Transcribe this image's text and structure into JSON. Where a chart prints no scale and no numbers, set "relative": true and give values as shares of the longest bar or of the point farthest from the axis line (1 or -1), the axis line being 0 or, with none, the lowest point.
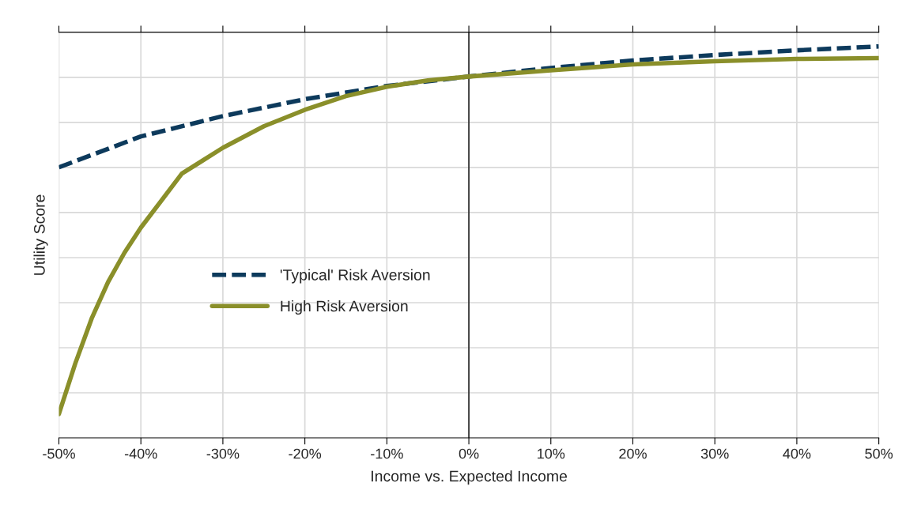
{
  "chart_data": {
    "type": "line",
    "relative": true,
    "xlabel": "Income vs. Expected Income",
    "ylabel": "Utility Score",
    "xlim": [
      -50,
      50
    ],
    "xticks": [
      {
        "value": -50,
        "label": "-50%"
      },
      {
        "value": -40,
        "label": "-40%"
      },
      {
        "value": -30,
        "label": "-30%"
      },
      {
        "value": -20,
        "label": "-20%"
      },
      {
        "value": -10,
        "label": "-10%"
      },
      {
        "value": 0,
        "label": "0%"
      },
      {
        "value": 10,
        "label": "10%"
      },
      {
        "value": 20,
        "label": "20%"
      },
      {
        "value": 30,
        "label": "30%"
      },
      {
        "value": 40,
        "label": "40%"
      },
      {
        "value": 50,
        "label": "50%"
      }
    ],
    "grid": true,
    "legend": "center left",
    "ref_lines": [
      {
        "axis": "x",
        "value": 0,
        "color": "#000000"
      }
    ],
    "series": [
      {
        "name": "'Typical' Risk Aversion",
        "color": "#0d3a5c",
        "line_style": "dashed",
        "x": [
          -50,
          -40,
          -30,
          -20,
          -10,
          0,
          10,
          20,
          30,
          40,
          50
        ],
        "values": [
          0.691,
          0.77,
          0.822,
          0.865,
          0.899,
          0.923,
          0.945,
          0.964,
          0.978,
          0.99,
          1.0
        ]
      },
      {
        "name": "High Risk Aversion",
        "color": "#8a8f2a",
        "line_style": "solid",
        "x": [
          -50,
          -48,
          -46,
          -44,
          -42,
          -40,
          -35,
          -30,
          -25,
          -20,
          -15,
          -10,
          -5,
          0,
          10,
          20,
          30,
          40,
          50
        ],
        "values": [
          0.061,
          0.19,
          0.305,
          0.398,
          0.473,
          0.537,
          0.675,
          0.741,
          0.796,
          0.838,
          0.873,
          0.897,
          0.913,
          0.923,
          0.939,
          0.954,
          0.962,
          0.968,
          0.97
        ]
      }
    ]
  }
}
